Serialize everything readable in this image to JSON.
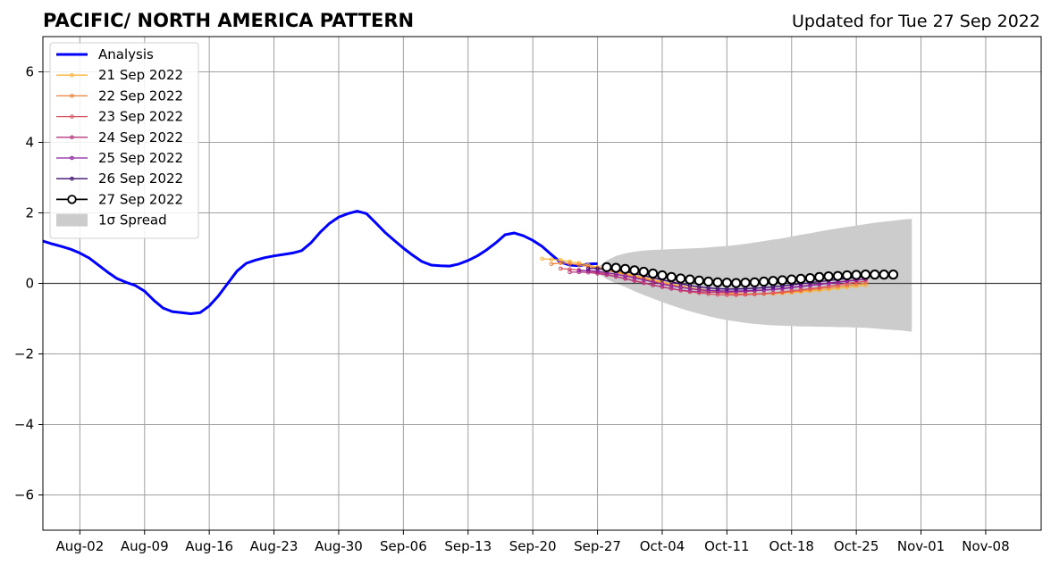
{
  "chart_data": {
    "type": "line",
    "title": "PACIFIC/ NORTH AMERICA PATTERN",
    "subtitle": "Updated for Tue 27 Sep 2022",
    "xlabel": "",
    "ylabel": "",
    "xlim": [
      "2022-07-29",
      "2022-11-14"
    ],
    "ylim": [
      -7,
      7
    ],
    "y_ticks": [
      -6,
      -4,
      -2,
      0,
      2,
      4,
      6
    ],
    "x_ticks": [
      {
        "date": "2022-08-02",
        "label": "Aug-02"
      },
      {
        "date": "2022-08-09",
        "label": "Aug-09"
      },
      {
        "date": "2022-08-16",
        "label": "Aug-16"
      },
      {
        "date": "2022-08-23",
        "label": "Aug-23"
      },
      {
        "date": "2022-08-30",
        "label": "Aug-30"
      },
      {
        "date": "2022-09-06",
        "label": "Sep-06"
      },
      {
        "date": "2022-09-13",
        "label": "Sep-13"
      },
      {
        "date": "2022-09-20",
        "label": "Sep-20"
      },
      {
        "date": "2022-09-27",
        "label": "Sep-27"
      },
      {
        "date": "2022-10-04",
        "label": "Oct-04"
      },
      {
        "date": "2022-10-11",
        "label": "Oct-11"
      },
      {
        "date": "2022-10-18",
        "label": "Oct-18"
      },
      {
        "date": "2022-10-25",
        "label": "Oct-25"
      },
      {
        "date": "2022-11-01",
        "label": "Nov-01"
      },
      {
        "date": "2022-11-08",
        "label": "Nov-08"
      }
    ],
    "grid": true,
    "zero_line": true,
    "legend_position": "top-left",
    "analysis": {
      "name": "Analysis",
      "color": "#0000ff",
      "start": "2022-07-29",
      "values": [
        1.2,
        1.12,
        1.05,
        0.97,
        0.86,
        0.72,
        0.52,
        0.32,
        0.14,
        0.03,
        -0.06,
        -0.22,
        -0.48,
        -0.7,
        -0.8,
        -0.83,
        -0.86,
        -0.83,
        -0.64,
        -0.35,
        0.0,
        0.35,
        0.57,
        0.66,
        0.73,
        0.78,
        0.82,
        0.86,
        0.93,
        1.15,
        1.45,
        1.7,
        1.88,
        1.98,
        2.05,
        1.98,
        1.72,
        1.45,
        1.22,
        1.0,
        0.8,
        0.62,
        0.52,
        0.5,
        0.49,
        0.55,
        0.65,
        0.78,
        0.95,
        1.15,
        1.38,
        1.43,
        1.35,
        1.22,
        1.05,
        0.82,
        0.6,
        0.52,
        0.5,
        0.55,
        0.56
      ]
    },
    "forecasts": [
      {
        "name": "21 Sep 2022",
        "color": "#fbb534",
        "start": "2022-09-21",
        "values": [
          0.7,
          0.68,
          0.66,
          0.62,
          0.58,
          0.52,
          0.46,
          0.4,
          0.34,
          0.28,
          0.22,
          0.16,
          0.1,
          0.04,
          -0.02,
          -0.07,
          -0.12,
          -0.16,
          -0.2,
          -0.24,
          -0.27,
          -0.29,
          -0.3,
          -0.3,
          -0.3,
          -0.29,
          -0.28,
          -0.26,
          -0.24,
          -0.22,
          -0.2,
          -0.17,
          -0.14,
          -0.11,
          -0.08,
          -0.05
        ]
      },
      {
        "name": "22 Sep 2022",
        "color": "#f07f38",
        "start": "2022-09-22",
        "values": [
          0.55,
          0.58,
          0.56,
          0.53,
          0.48,
          0.43,
          0.37,
          0.31,
          0.25,
          0.19,
          0.13,
          0.07,
          0.01,
          -0.05,
          -0.1,
          -0.15,
          -0.19,
          -0.23,
          -0.26,
          -0.28,
          -0.3,
          -0.3,
          -0.3,
          -0.29,
          -0.28,
          -0.26,
          -0.24,
          -0.21,
          -0.18,
          -0.15,
          -0.12,
          -0.09,
          -0.06,
          -0.03,
          0.0
        ]
      },
      {
        "name": "23 Sep 2022",
        "color": "#dd5060",
        "start": "2022-09-23",
        "values": [
          0.42,
          0.4,
          0.38,
          0.35,
          0.31,
          0.26,
          0.2,
          0.14,
          0.08,
          0.02,
          -0.04,
          -0.1,
          -0.15,
          -0.2,
          -0.24,
          -0.27,
          -0.3,
          -0.32,
          -0.33,
          -0.33,
          -0.32,
          -0.31,
          -0.29,
          -0.27,
          -0.24,
          -0.21,
          -0.18,
          -0.15,
          -0.12,
          -0.08,
          -0.04,
          0.0,
          0.03,
          0.06
        ]
      },
      {
        "name": "24 Sep 2022",
        "color": "#b7367e",
        "start": "2022-09-24",
        "values": [
          0.32,
          0.32,
          0.31,
          0.28,
          0.24,
          0.19,
          0.13,
          0.07,
          0.01,
          -0.05,
          -0.1,
          -0.15,
          -0.19,
          -0.22,
          -0.24,
          -0.25,
          -0.25,
          -0.25,
          -0.24,
          -0.23,
          -0.21,
          -0.19,
          -0.17,
          -0.14,
          -0.11,
          -0.08,
          -0.05,
          -0.02,
          0.01,
          0.04,
          0.07,
          0.1,
          0.12
        ]
      },
      {
        "name": "25 Sep 2022",
        "color": "#8a1fa0",
        "start": "2022-09-25",
        "values": [
          0.36,
          0.36,
          0.34,
          0.3,
          0.26,
          0.21,
          0.16,
          0.1,
          0.04,
          -0.02,
          -0.07,
          -0.11,
          -0.15,
          -0.18,
          -0.2,
          -0.21,
          -0.22,
          -0.22,
          -0.21,
          -0.2,
          -0.19,
          -0.17,
          -0.15,
          -0.12,
          -0.09,
          -0.06,
          -0.03,
          0.0,
          0.03,
          0.06,
          0.09,
          0.12
        ]
      },
      {
        "name": "26 Sep 2022",
        "color": "#3d0a72",
        "start": "2022-09-26",
        "values": [
          0.42,
          0.42,
          0.4,
          0.37,
          0.33,
          0.28,
          0.22,
          0.16,
          0.1,
          0.04,
          -0.01,
          -0.06,
          -0.1,
          -0.13,
          -0.15,
          -0.16,
          -0.16,
          -0.15,
          -0.14,
          -0.12,
          -0.1,
          -0.07,
          -0.04,
          -0.01,
          0.02,
          0.05,
          0.08,
          0.11,
          0.14,
          0.17,
          0.19
        ]
      },
      {
        "name": "27 Sep 2022",
        "color": "#000000",
        "start": "2022-09-28",
        "values": [
          0.46,
          0.44,
          0.41,
          0.37,
          0.33,
          0.28,
          0.23,
          0.18,
          0.14,
          0.11,
          0.08,
          0.05,
          0.03,
          0.02,
          0.01,
          0.02,
          0.03,
          0.05,
          0.07,
          0.09,
          0.11,
          0.13,
          0.15,
          0.18,
          0.2,
          0.21,
          0.23,
          0.24,
          0.25,
          0.25,
          0.25,
          0.25
        ]
      }
    ],
    "spread": {
      "name": "1σ Spread",
      "color": "#cccccc",
      "start": "2022-09-27",
      "upper": [
        0.45,
        0.65,
        0.78,
        0.85,
        0.9,
        0.93,
        0.95,
        0.96,
        0.97,
        0.98,
        0.99,
        1.0,
        1.02,
        1.04,
        1.06,
        1.09,
        1.12,
        1.16,
        1.2,
        1.24,
        1.28,
        1.33,
        1.38,
        1.42,
        1.47,
        1.52,
        1.56,
        1.6,
        1.64,
        1.68,
        1.72,
        1.75,
        1.78,
        1.81,
        1.83
      ],
      "lower": [
        0.3,
        0.12,
        0.0,
        -0.1,
        -0.22,
        -0.33,
        -0.43,
        -0.53,
        -0.62,
        -0.71,
        -0.79,
        -0.86,
        -0.93,
        -0.99,
        -1.04,
        -1.08,
        -1.12,
        -1.15,
        -1.17,
        -1.19,
        -1.2,
        -1.21,
        -1.22,
        -1.22,
        -1.23,
        -1.23,
        -1.24,
        -1.24,
        -1.25,
        -1.26,
        -1.28,
        -1.3,
        -1.32,
        -1.34,
        -1.37
      ]
    }
  }
}
